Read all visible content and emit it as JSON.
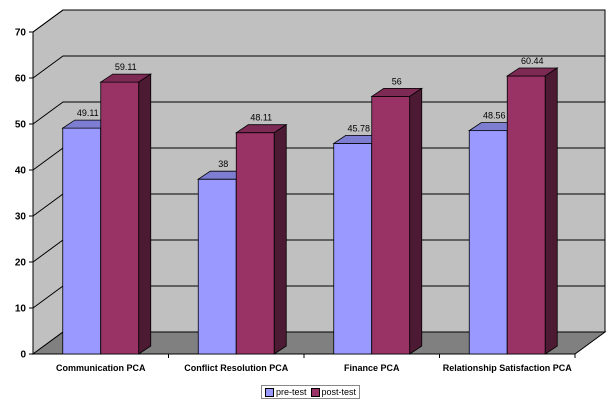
{
  "chart_data": {
    "type": "bar",
    "categories": [
      "Communication PCA",
      "Conflict Resolution PCA",
      "Finance PCA",
      "Relationship Satisfaction PCA"
    ],
    "series": [
      {
        "name": "pre-test",
        "values": [
          49.11,
          38,
          45.78,
          48.56
        ],
        "labels": [
          "49.11",
          "38",
          "45.78",
          "48.56"
        ],
        "color": "#9999ff"
      },
      {
        "name": "post-test",
        "values": [
          59.11,
          48.11,
          56,
          60.44
        ],
        "labels": [
          "59.11",
          "48.11",
          "56",
          "60.44"
        ],
        "color": "#993366"
      }
    ],
    "ylim": [
      0,
      70
    ],
    "yticks": [
      0,
      10,
      20,
      30,
      40,
      50,
      60,
      70
    ],
    "grid": true,
    "legend_position": "bottom",
    "colors": {
      "wall": "#c0c0c0",
      "floor": "#808080",
      "gridline": "#000000"
    }
  }
}
